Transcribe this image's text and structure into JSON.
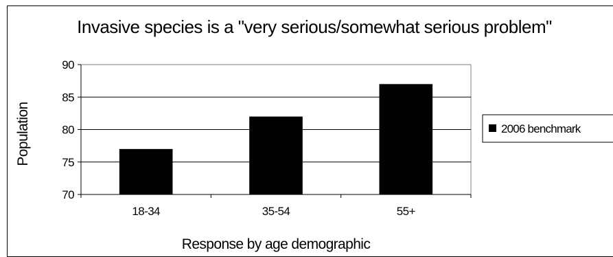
{
  "chart_data": {
    "type": "bar",
    "title": "Invasive species is a \"very serious/somewhat serious problem\"",
    "xlabel": "Response by age demographic",
    "ylabel": "Population",
    "categories": [
      "18-34",
      "35-54",
      "55+"
    ],
    "series": [
      {
        "name": "2006 benchmark",
        "values": [
          77,
          82,
          87
        ],
        "color": "#000000"
      }
    ],
    "ylim": [
      70,
      90
    ],
    "yticks": [
      70,
      75,
      80,
      85,
      90
    ],
    "grid": true,
    "legend_position": "right"
  }
}
